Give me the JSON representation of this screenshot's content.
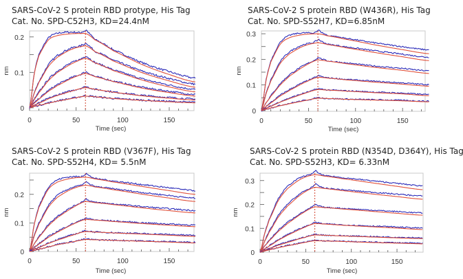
{
  "chart_data": [
    {
      "type": "line",
      "title": "SARS-CoV-2 S protein RBD protype, His Tag",
      "subtitle": "Cat. No. SPD-C52H3, KD=24.4nM",
      "xlabel": "Time (sec)",
      "ylabel": "nm",
      "xlim": [
        0,
        176.6
      ],
      "ylim": [
        -0.008,
        0.217
      ],
      "xticks": [
        0,
        50,
        100,
        150
      ],
      "yticks": [
        0,
        0.1,
        0.2
      ],
      "marker_time": 60,
      "colors": {
        "measured": "#2a2ab8",
        "fit": "#e0503a"
      },
      "t": [
        0,
        5,
        10,
        20,
        30,
        45,
        60,
        70,
        90,
        120,
        150,
        178
      ],
      "series": [
        [
          0,
          0.095,
          0.147,
          0.191,
          0.204,
          0.209,
          0.21,
          0.192,
          0.161,
          0.123,
          0.094,
          0.073
        ],
        [
          0,
          0.041,
          0.072,
          0.116,
          0.143,
          0.165,
          0.175,
          0.159,
          0.132,
          0.1,
          0.076,
          0.058
        ],
        [
          0,
          0.023,
          0.043,
          0.076,
          0.1,
          0.124,
          0.14,
          0.127,
          0.105,
          0.079,
          0.059,
          0.045
        ],
        [
          0,
          0.013,
          0.025,
          0.046,
          0.063,
          0.083,
          0.097,
          0.088,
          0.074,
          0.056,
          0.043,
          0.033
        ],
        [
          0,
          0.007,
          0.013,
          0.025,
          0.035,
          0.047,
          0.057,
          0.052,
          0.044,
          0.034,
          0.027,
          0.022
        ],
        [
          0,
          0.004,
          0.007,
          0.013,
          0.019,
          0.026,
          0.033,
          0.031,
          0.026,
          0.021,
          0.017,
          0.014
        ]
      ]
    },
    {
      "type": "line",
      "title": "SARS-CoV-2 S protein RBD (W436R), His Tag",
      "subtitle": "Cat. No. SPD-S52H7, KD=6.85nM",
      "xlabel": "Time (sec)",
      "ylabel": "nm",
      "xlim": [
        0,
        174
      ],
      "ylim": [
        -0.003,
        0.311
      ],
      "xticks": [
        0,
        50,
        100,
        150
      ],
      "yticks": [
        0,
        0.1,
        0.2,
        0.3
      ],
      "marker_time": 60,
      "colors": {
        "measured": "#2a2ab8",
        "fit": "#e0503a"
      },
      "t": [
        0,
        5,
        10,
        20,
        30,
        45,
        60,
        70,
        90,
        120,
        150,
        178
      ],
      "series": [
        [
          0,
          0.118,
          0.19,
          0.259,
          0.285,
          0.297,
          0.3,
          0.292,
          0.278,
          0.257,
          0.238,
          0.222
        ],
        [
          0,
          0.066,
          0.116,
          0.184,
          0.222,
          0.252,
          0.265,
          0.258,
          0.245,
          0.227,
          0.21,
          0.195
        ],
        [
          0,
          0.03,
          0.056,
          0.1,
          0.135,
          0.172,
          0.198,
          0.193,
          0.183,
          0.169,
          0.157,
          0.145
        ],
        [
          0,
          0.016,
          0.03,
          0.057,
          0.079,
          0.108,
          0.13,
          0.127,
          0.12,
          0.111,
          0.103,
          0.095
        ],
        [
          0,
          0.009,
          0.017,
          0.033,
          0.047,
          0.066,
          0.082,
          0.08,
          0.076,
          0.07,
          0.065,
          0.058
        ],
        [
          0,
          0.005,
          0.01,
          0.019,
          0.027,
          0.038,
          0.048,
          0.047,
          0.044,
          0.041,
          0.038,
          0.034
        ]
      ]
    },
    {
      "type": "line",
      "title": "SARS-CoV-2 S protein RBD (V367F), His Tag",
      "subtitle": "Cat. No. SPD-S52H4, KD= 5.5nM",
      "xlabel": "Time (sec)",
      "ylabel": "nm",
      "xlim": [
        0,
        176.6
      ],
      "ylim": [
        0,
        0.274
      ],
      "xticks": [
        0,
        50,
        100,
        150
      ],
      "yticks": [
        0,
        0.1,
        0.2
      ],
      "marker_time": 60,
      "colors": {
        "measured": "#2a2ab8",
        "fit": "#e0503a"
      },
      "t": [
        0,
        5,
        10,
        20,
        30,
        45,
        60,
        70,
        90,
        120,
        150,
        178
      ],
      "series": [
        [
          0,
          0.094,
          0.154,
          0.217,
          0.243,
          0.256,
          0.26,
          0.254,
          0.243,
          0.228,
          0.213,
          0.2
        ],
        [
          0,
          0.054,
          0.096,
          0.154,
          0.19,
          0.218,
          0.232,
          0.226,
          0.216,
          0.201,
          0.187,
          0.175
        ],
        [
          0,
          0.027,
          0.05,
          0.089,
          0.119,
          0.151,
          0.175,
          0.171,
          0.164,
          0.153,
          0.143,
          0.135
        ],
        [
          0,
          0.014,
          0.026,
          0.049,
          0.068,
          0.093,
          0.112,
          0.11,
          0.105,
          0.098,
          0.092,
          0.087
        ],
        [
          0,
          0.008,
          0.014,
          0.028,
          0.04,
          0.056,
          0.07,
          0.068,
          0.065,
          0.061,
          0.057,
          0.053
        ],
        [
          0,
          0.004,
          0.008,
          0.016,
          0.024,
          0.033,
          0.042,
          0.041,
          0.039,
          0.036,
          0.033,
          0.03
        ]
      ]
    },
    {
      "type": "line",
      "title": "SARS-CoV-2 S protein RBD (N354D, D364Y), His Tag",
      "subtitle": "Cat. No. SPD-S52H3, KD= 6.33nM",
      "xlabel": "Time (sec)",
      "ylabel": "nm",
      "xlim": [
        0,
        178.6
      ],
      "ylim": [
        0,
        0.331
      ],
      "xticks": [
        0,
        50,
        100,
        150
      ],
      "yticks": [
        0,
        0.1,
        0.2,
        0.3
      ],
      "marker_time": 60,
      "colors": {
        "measured": "#2a2ab8",
        "fit": "#e0503a"
      },
      "t": [
        0,
        5,
        10,
        20,
        30,
        45,
        60,
        70,
        90,
        120,
        150,
        178
      ],
      "series": [
        [
          0,
          0.076,
          0.135,
          0.216,
          0.266,
          0.307,
          0.325,
          0.319,
          0.308,
          0.292,
          0.276,
          0.262
        ],
        [
          0,
          0.045,
          0.084,
          0.147,
          0.193,
          0.242,
          0.272,
          0.267,
          0.258,
          0.245,
          0.233,
          0.222
        ],
        [
          0,
          0.025,
          0.048,
          0.087,
          0.12,
          0.16,
          0.19,
          0.187,
          0.181,
          0.172,
          0.163,
          0.155
        ],
        [
          0,
          0.014,
          0.026,
          0.05,
          0.071,
          0.098,
          0.12,
          0.118,
          0.113,
          0.107,
          0.101,
          0.095
        ],
        [
          0,
          0.008,
          0.015,
          0.029,
          0.041,
          0.058,
          0.072,
          0.071,
          0.068,
          0.064,
          0.06,
          0.057
        ],
        [
          0,
          0.005,
          0.01,
          0.019,
          0.027,
          0.038,
          0.048,
          0.047,
          0.045,
          0.041,
          0.038,
          0.035
        ]
      ]
    }
  ]
}
